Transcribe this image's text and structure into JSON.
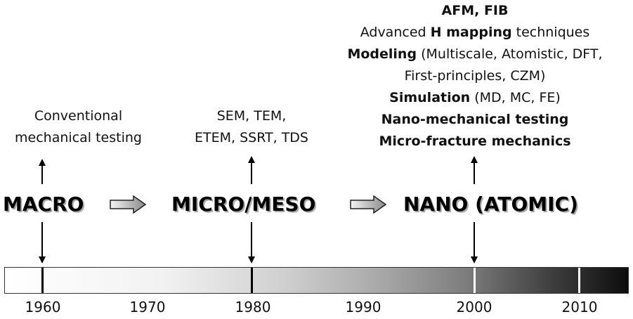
{
  "macro": {
    "label": "MACRO",
    "methods": [
      "Conventional",
      "mechanical testing"
    ]
  },
  "micro": {
    "label": "MICRO/MESO",
    "methods": [
      "SEM, TEM,",
      "ETEM, SSRT, TDS"
    ]
  },
  "nano": {
    "label": "NANO (ATOMIC)",
    "methods": {
      "line1": "AFM, FIB",
      "line2_pre": "Advanced ",
      "line2_bold": "H mapping",
      "line2_post": " techniques",
      "line3_bold": "Modeling",
      "line3_rest": " (Multiscale, Atomistic, DFT,",
      "line4": "First-principles, CZM)",
      "line5_bold": "Simulation",
      "line5_rest": " (MD, MC, FE)",
      "line6": "Nano-mechanical testing",
      "line7": "Micro-fracture mechanics"
    }
  },
  "timeline": {
    "years": [
      "1960",
      "1970",
      "1980",
      "1990",
      "2000",
      "2010"
    ],
    "gradient": [
      "#ffffff",
      "#0d0d0d"
    ],
    "tick_colors": {
      "dark": "#000000",
      "light": "#ffffff"
    }
  },
  "arrow_color": "#999999"
}
